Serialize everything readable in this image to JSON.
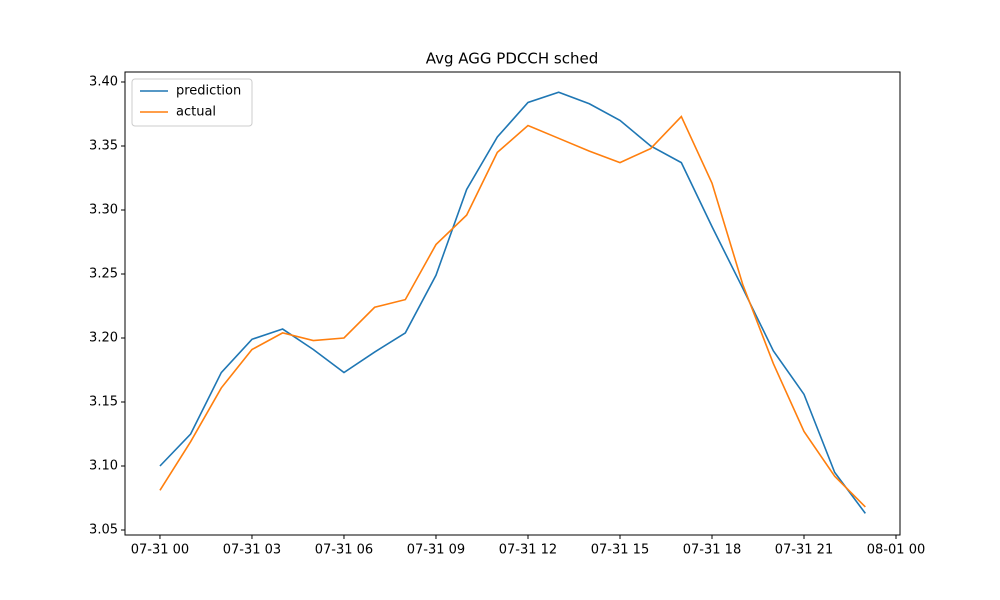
{
  "chart_data": {
    "type": "line",
    "title": "Avg AGG PDCCH sched",
    "x": [
      0,
      1,
      2,
      3,
      4,
      5,
      6,
      7,
      8,
      9,
      10,
      11,
      12,
      13,
      14,
      15,
      16,
      17,
      18,
      19,
      20,
      21,
      22,
      23
    ],
    "series": [
      {
        "name": "prediction",
        "color": "#1f77b4",
        "values": [
          3.1,
          3.125,
          3.173,
          3.199,
          3.207,
          3.191,
          3.173,
          3.189,
          3.204,
          3.249,
          3.316,
          3.357,
          3.384,
          3.392,
          3.383,
          3.37,
          3.35,
          3.337,
          3.287,
          3.239,
          3.19,
          3.156,
          3.095,
          3.063
        ]
      },
      {
        "name": "actual",
        "color": "#ff7f0e",
        "values": [
          3.081,
          3.119,
          3.161,
          3.191,
          3.204,
          3.198,
          3.2,
          3.224,
          3.23,
          3.273,
          3.296,
          3.345,
          3.366,
          3.356,
          3.346,
          3.337,
          3.348,
          3.373,
          3.321,
          3.242,
          3.18,
          3.127,
          3.092,
          3.068
        ]
      }
    ],
    "xlim": [
      -1.14,
      24.13
    ],
    "xticks": [
      {
        "value": 0,
        "label": "07-31 00"
      },
      {
        "value": 3,
        "label": "07-31 03"
      },
      {
        "value": 6,
        "label": "07-31 06"
      },
      {
        "value": 9,
        "label": "07-31 09"
      },
      {
        "value": 12,
        "label": "07-31 12"
      },
      {
        "value": 15,
        "label": "07-31 15"
      },
      {
        "value": 18,
        "label": "07-31 18"
      },
      {
        "value": 21,
        "label": "07-31 21"
      },
      {
        "value": 24,
        "label": "08-01 00"
      }
    ],
    "ylim": [
      3.0461,
      3.4078
    ],
    "yticks": [
      {
        "value": 3.05,
        "label": "3.05"
      },
      {
        "value": 3.1,
        "label": "3.10"
      },
      {
        "value": 3.15,
        "label": "3.15"
      },
      {
        "value": 3.2,
        "label": "3.20"
      },
      {
        "value": 3.25,
        "label": "3.25"
      },
      {
        "value": 3.3,
        "label": "3.30"
      },
      {
        "value": 3.35,
        "label": "3.35"
      },
      {
        "value": 3.4,
        "label": "3.40"
      }
    ],
    "legend": "upper left",
    "grid": false
  }
}
